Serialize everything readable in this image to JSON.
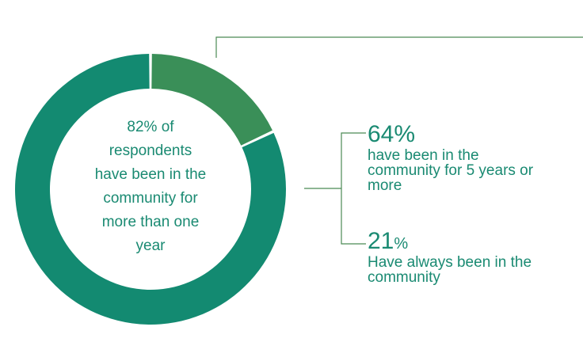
{
  "colors": {
    "main_segment": "#138a71",
    "minor_segment": "#3a8f58",
    "connector": "#4b8a55",
    "text": "#1a8a72"
  },
  "chart_data": {
    "type": "pie",
    "variant": "donut",
    "slices": [
      {
        "value": 82
      },
      {
        "value": 18
      }
    ],
    "center_label": "82% of respondents have been in the community for more than one year",
    "center_lines": [
      "82% of",
      "respondents",
      "have been in the",
      "community for",
      "more than one",
      "year"
    ],
    "callouts": [
      {
        "value": "64%",
        "unit": "",
        "desc_lines": [
          "have been in the",
          "community for 5 years or",
          "more"
        ]
      },
      {
        "value": "21",
        "unit": "%",
        "desc_lines": [
          "Have always been in the",
          "community"
        ]
      }
    ]
  }
}
